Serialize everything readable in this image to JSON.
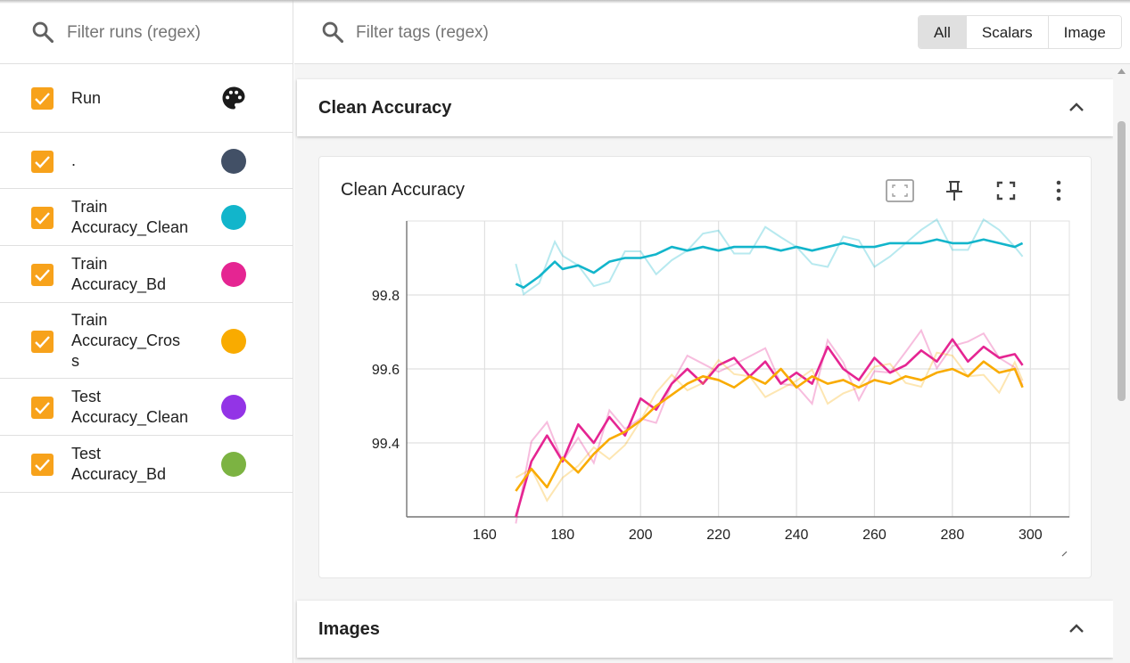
{
  "runs_panel": {
    "search_placeholder": "Filter runs (regex)",
    "header_label": "Run",
    "runs": [
      {
        "label": ".",
        "color": "#425066",
        "checked": true
      },
      {
        "label": "Train Accuracy_Clean",
        "color": "#12b5cb",
        "checked": true
      },
      {
        "label": "Train Accuracy_Bd",
        "color": "#e52592",
        "checked": true
      },
      {
        "label": "Train Accuracy_Cros s",
        "color": "#f9ab00",
        "checked": true
      },
      {
        "label": "Test Accuracy_Clean",
        "color": "#9334e6",
        "checked": true
      },
      {
        "label": "Test Accuracy_Bd",
        "color": "#7cb342",
        "checked": true
      }
    ]
  },
  "main": {
    "search_placeholder": "Filter tags (regex)",
    "tabs": [
      {
        "label": "All",
        "active": true
      },
      {
        "label": "Scalars",
        "active": false
      },
      {
        "label": "Image",
        "active": false
      }
    ],
    "sections": [
      {
        "title": "Clean Accuracy"
      },
      {
        "title": "Images"
      }
    ],
    "card": {
      "title": "Clean Accuracy",
      "icons": [
        "fit-domain-icon",
        "pin-icon",
        "fullscreen-icon",
        "more-vert-icon"
      ]
    }
  },
  "chart_data": {
    "type": "line",
    "title": "Clean Accuracy",
    "xlabel": "",
    "ylabel": "",
    "xlim": [
      140,
      310
    ],
    "ylim": [
      99.2,
      100.0
    ],
    "x_ticks": [
      160,
      180,
      200,
      220,
      240,
      260,
      280,
      300
    ],
    "y_ticks": [
      99.4,
      99.6,
      99.8
    ],
    "grid": true,
    "series": [
      {
        "name": "Train Accuracy_Clean",
        "color": "#12b5cb",
        "x": [
          168,
          170,
          174,
          178,
          180,
          184,
          188,
          192,
          196,
          200,
          204,
          208,
          212,
          216,
          220,
          224,
          228,
          232,
          236,
          240,
          244,
          248,
          252,
          256,
          260,
          264,
          268,
          272,
          276,
          280,
          284,
          288,
          292,
          296,
          298
        ],
        "y": [
          99.83,
          99.82,
          99.85,
          99.89,
          99.87,
          99.88,
          99.86,
          99.89,
          99.9,
          99.9,
          99.91,
          99.93,
          99.92,
          99.93,
          99.92,
          99.93,
          99.93,
          99.93,
          99.92,
          99.93,
          99.92,
          99.93,
          99.94,
          99.93,
          99.93,
          99.94,
          99.94,
          99.94,
          99.95,
          99.94,
          99.94,
          99.95,
          99.94,
          99.93,
          99.94
        ]
      },
      {
        "name": "Train Accuracy_Bd",
        "color": "#e52592",
        "x": [
          168,
          172,
          176,
          180,
          184,
          188,
          192,
          196,
          200,
          204,
          208,
          212,
          216,
          220,
          224,
          228,
          232,
          236,
          240,
          244,
          248,
          252,
          256,
          260,
          264,
          268,
          272,
          276,
          280,
          284,
          288,
          292,
          296,
          298
        ],
        "y": [
          99.2,
          99.35,
          99.42,
          99.35,
          99.45,
          99.4,
          99.47,
          99.42,
          99.52,
          99.49,
          99.56,
          99.6,
          99.56,
          99.61,
          99.63,
          99.58,
          99.62,
          99.56,
          99.59,
          99.56,
          99.66,
          99.6,
          99.57,
          99.63,
          99.59,
          99.61,
          99.65,
          99.62,
          99.68,
          99.62,
          99.66,
          99.63,
          99.64,
          99.61
        ]
      },
      {
        "name": "Train Accuracy_Cros s",
        "color": "#f9ab00",
        "x": [
          168,
          172,
          176,
          180,
          184,
          188,
          192,
          196,
          200,
          204,
          208,
          212,
          216,
          220,
          224,
          228,
          232,
          236,
          240,
          244,
          248,
          252,
          256,
          260,
          264,
          268,
          272,
          276,
          280,
          284,
          288,
          292,
          296,
          298
        ],
        "y": [
          99.27,
          99.33,
          99.28,
          99.36,
          99.32,
          99.37,
          99.41,
          99.43,
          99.46,
          99.5,
          99.53,
          99.56,
          99.58,
          99.57,
          99.55,
          99.58,
          99.56,
          99.6,
          99.55,
          99.58,
          99.56,
          99.57,
          99.55,
          99.57,
          99.56,
          99.58,
          99.57,
          99.59,
          99.6,
          99.58,
          99.62,
          99.59,
          99.6,
          99.55
        ]
      }
    ]
  }
}
